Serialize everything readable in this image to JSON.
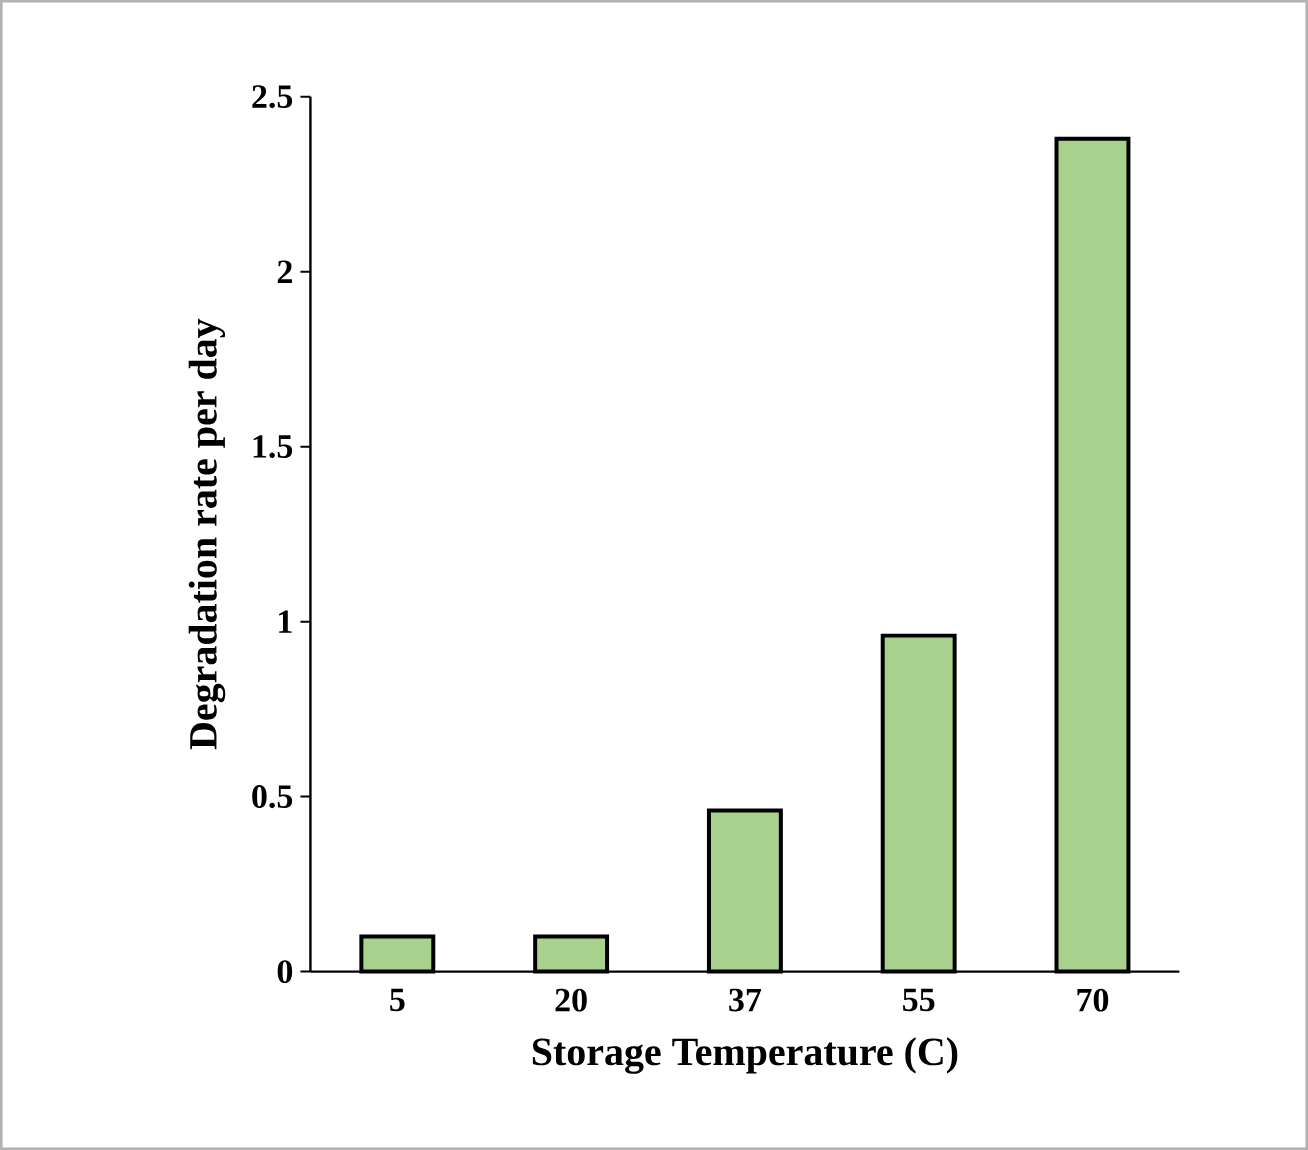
{
  "chart_data": {
    "type": "bar",
    "xlabel": "Storage Temperature (C)",
    "ylabel": "Degradation rate per day",
    "categories": [
      "5",
      "20",
      "37",
      "55",
      "70"
    ],
    "values": [
      0.1,
      0.1,
      0.46,
      0.96,
      2.38
    ],
    "color": "#a9d18e",
    "ylim": [
      0,
      2.5
    ],
    "yticks": [
      0,
      0.5,
      1,
      1.5,
      2,
      2.5
    ],
    "grid": false
  }
}
